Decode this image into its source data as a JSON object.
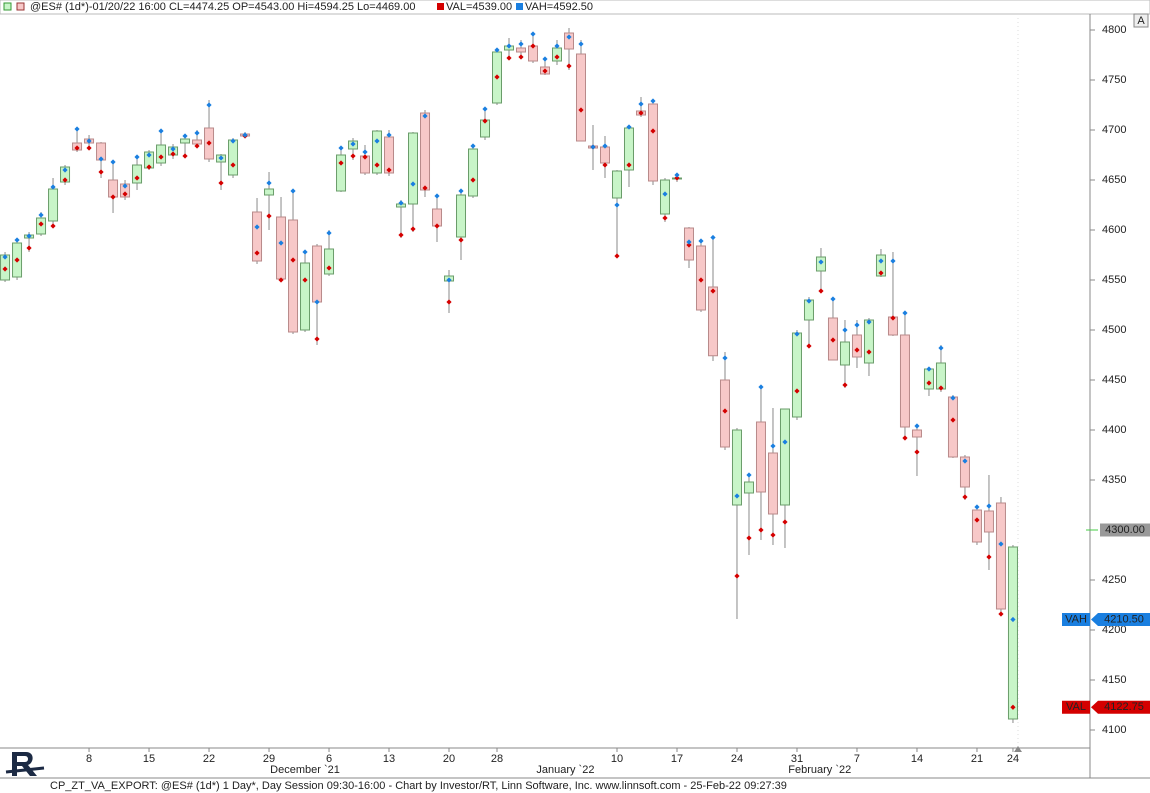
{
  "chart_data": {
    "type": "candlestick",
    "header": "@ES# (1d*)-01/20/22 16:00 CL=4474.25 OP=4543.00 Hi=4594.25 Lo=4469.00",
    "header_val": "VAL=4539.00",
    "header_vah": "VAH=4592.50",
    "footer": "CP_ZT_VA_EXPORT: @ES# (1d*) 1 Day*, Day Session 09:30-16:00 - Chart by Investor/RT, Linn Software, Inc. www.linnsoft.com - 25-Feb-22 09:27:39",
    "button": "A",
    "up_color": "#c8f5c8",
    "down_color": "#f7c8c8",
    "open": [
      4550,
      4553,
      4592,
      4596,
      4609,
      4648,
      4687,
      4691,
      4687,
      4650,
      4646,
      4647,
      4662,
      4667,
      4675,
      4687,
      4690,
      4702,
      4668,
      4655,
      4696,
      4618,
      4635,
      4613,
      4610,
      4500,
      4584,
      4556,
      4639,
      4681,
      4674,
      4657,
      4693,
      4623,
      4626,
      4717,
      4621,
      4549,
      4593,
      4634,
      4693,
      4727,
      4780,
      4782,
      4784,
      4763,
      4769,
      4797,
      4776,
      4684,
      4683,
      4632,
      4660,
      4719,
      4726,
      4616,
      4651,
      4602,
      4584,
      4543,
      4450,
      4325,
      4337,
      4408,
      4377,
      4325,
      4413,
      4510,
      4559,
      4512,
      4465,
      4495,
      4467,
      4554,
      4513,
      4495,
      4400,
      4441,
      4441,
      4433,
      4373,
      4320,
      4319,
      4327,
      4111
    ],
    "high": [
      4578,
      4592,
      4598,
      4618,
      4652,
      4665,
      4702,
      4695,
      4688,
      4668,
      4650,
      4675,
      4680,
      4700,
      4686,
      4695,
      4700,
      4730,
      4676,
      4692,
      4698,
      4632,
      4658,
      4633,
      4640,
      4580,
      4586,
      4600,
      4684,
      4692,
      4685,
      4700,
      4700,
      4630,
      4698,
      4720,
      4634,
      4560,
      4640,
      4684,
      4722,
      4781,
      4792,
      4790,
      4797,
      4772,
      4790,
      4802,
      4790,
      4705,
      4694,
      4660,
      4704,
      4733,
      4730,
      4652,
      4656,
      4603,
      4590,
      4594.25,
      4478,
      4402,
      4355,
      4445,
      4422,
      4421,
      4500,
      4533,
      4582,
      4531,
      4510,
      4510,
      4512,
      4581,
      4578,
      4517,
      4405,
      4462,
      4485,
      4435,
      4375,
      4325,
      4355,
      4333,
      4285
    ],
    "low": [
      4548,
      4550,
      4578,
      4594,
      4603,
      4645,
      4678,
      4682,
      4652,
      4617,
      4630,
      4640,
      4660,
      4664,
      4671,
      4672,
      4683,
      4668,
      4640,
      4652,
      4693,
      4566,
      4600,
      4548,
      4496,
      4498,
      4485,
      4554,
      4638,
      4670,
      4655,
      4655,
      4654,
      4592,
      4598,
      4633,
      4588,
      4517,
      4570,
      4632,
      4690,
      4725,
      4770,
      4773,
      4767,
      4755,
      4765,
      4760,
      4689,
      4660,
      4652,
      4572,
      4643,
      4713,
      4645,
      4608,
      4648,
      4562,
      4518,
      4469,
      4380,
      4211,
      4275,
      4290,
      4285,
      4282,
      4410,
      4484,
      4538,
      4470,
      4442,
      4462,
      4454,
      4553,
      4494,
      4390,
      4354,
      4434,
      4438,
      4372,
      4330,
      4285,
      4260,
      4218,
      4107
    ],
    "close": [
      4575,
      4587,
      4595,
      4612,
      4641,
      4663,
      4680,
      4687,
      4670,
      4633,
      4633,
      4665,
      4678,
      4685,
      4683,
      4691,
      4686,
      4671,
      4675,
      4690,
      4694,
      4569,
      4641,
      4551,
      4498,
      4567,
      4528,
      4581,
      4675,
      4689,
      4657,
      4699,
      4657,
      4626,
      4697,
      4640,
      4604,
      4554,
      4635,
      4681,
      4710,
      4778,
      4784,
      4778,
      4769,
      4756,
      4782,
      4781,
      4689,
      4682,
      4667,
      4659,
      4702,
      4715,
      4649,
      4650,
      4652,
      4570,
      4520,
      4474.25,
      4383,
      4400,
      4348,
      4338,
      4316,
      4421,
      4497,
      4530,
      4573,
      4470,
      4488,
      4473,
      4510,
      4575,
      4495,
      4403,
      4393,
      4461,
      4467,
      4373,
      4343,
      4288,
      4298,
      4221,
      4283
    ],
    "series": [
      {
        "name": "VAL",
        "color": "#d40000",
        "marker": {
          "value": 4122.75,
          "label": "4122.75"
        },
        "values": [
          4561,
          4570,
          4582,
          4606,
          4604,
          4650,
          4682,
          4682,
          4658,
          4633,
          4636,
          4652,
          4663,
          4673,
          4676,
          4674,
          4684,
          4687,
          4647,
          4665,
          4694,
          4577,
          4614,
          4550,
          4570,
          4550,
          4491,
          4562,
          4667,
          4674,
          4673,
          4665,
          4660,
          4595,
          4601,
          4642,
          4604,
          4528,
          4590,
          4650,
          4709,
          4753,
          4772,
          4773,
          4784,
          4759,
          4773,
          4764,
          4720,
          4683,
          4665,
          4574,
          4665,
          4717,
          4699,
          4612,
          4652,
          4585,
          4550,
          4539,
          4419,
          4254,
          4292,
          4300,
          4295,
          4308,
          4439,
          4484,
          4539,
          4490,
          4445,
          4480,
          4478,
          4557,
          4512,
          4392,
          4378,
          4447,
          4442,
          4410,
          4333,
          4310,
          4273,
          4216,
          4122.75
        ]
      },
      {
        "name": "VAH",
        "color": "#1a7fe0",
        "marker": {
          "value": 4210.5,
          "label": "4210.50"
        },
        "values": [
          4573,
          4590,
          4594,
          4615,
          4643,
          4660,
          4701,
          4689,
          4671,
          4668,
          4644,
          4673,
          4675,
          4699,
          4681,
          4694,
          4697,
          4725,
          4672,
          4689,
          4695,
          4603,
          4647,
          4587,
          4639,
          4578,
          4528,
          4597,
          4682,
          4686,
          4678,
          4689,
          4695,
          4627,
          4646,
          4714,
          4634,
          4550,
          4639,
          4684,
          4721,
          4780,
          4784,
          4786,
          4796,
          4771,
          4784,
          4793,
          4786,
          4683,
          4684,
          4625,
          4703,
          4726,
          4729,
          4636,
          4655,
          4588,
          4589,
          4592.5,
          4472,
          4334,
          4355,
          4443,
          4384,
          4388,
          4496,
          4529,
          4568,
          4531,
          4500,
          4505,
          4508,
          4569,
          4569,
          4517,
          4404,
          4461,
          4482,
          4432,
          4369,
          4323,
          4324,
          4286,
          4210.5
        ]
      }
    ],
    "crosshair": {
      "value": 4300,
      "label": "4300.00"
    },
    "xlim": [
      -0.42,
      90.42
    ],
    "xticks": [
      {
        "value": 7,
        "label": "8"
      },
      {
        "value": 12,
        "label": "15"
      },
      {
        "value": 17,
        "label": "22"
      },
      {
        "value": 22,
        "label": "29"
      },
      {
        "value": 27,
        "label": "6"
      },
      {
        "value": 32,
        "label": "13"
      },
      {
        "value": 37,
        "label": "20"
      },
      {
        "value": 41,
        "label": "28"
      },
      {
        "value": 51,
        "label": "10"
      },
      {
        "value": 56,
        "label": "17"
      },
      {
        "value": 61,
        "label": "24"
      },
      {
        "value": 66,
        "label": "31"
      },
      {
        "value": 71,
        "label": "7"
      },
      {
        "value": 76,
        "label": "14"
      },
      {
        "value": 81,
        "label": "21"
      },
      {
        "value": 84,
        "label": "24"
      }
    ],
    "month_labels": [
      {
        "value": 25,
        "label": "December `21"
      },
      {
        "value": 46.7,
        "label": "January `22"
      },
      {
        "value": 67.9,
        "label": "February `22"
      }
    ],
    "ylim": [
      4082,
      4816
    ],
    "yticks": [
      4100,
      4150,
      4200,
      4250,
      4300,
      4350,
      4400,
      4450,
      4500,
      4550,
      4600,
      4650,
      4700,
      4750,
      4800
    ],
    "grid": false
  }
}
